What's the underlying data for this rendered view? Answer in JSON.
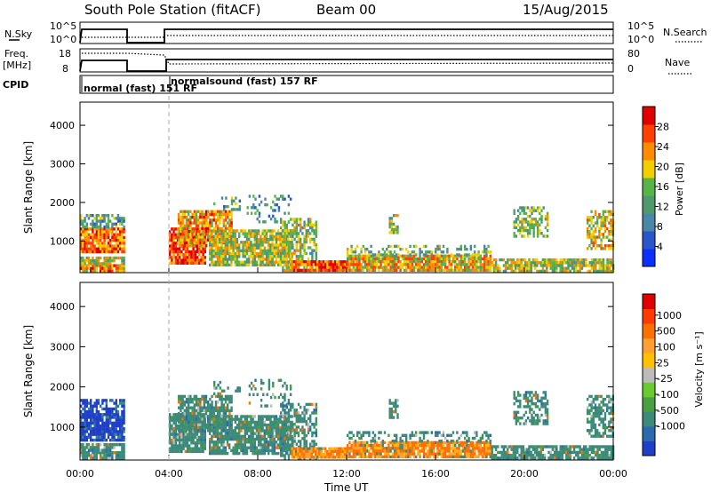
{
  "header": {
    "station": "South Pole Station (fitACF)",
    "beam": "Beam 00",
    "date": "15/Aug/2015"
  },
  "status_panels": {
    "nsky_label": "N.Sky",
    "nsky_ticks": [
      "10^5",
      "10^0"
    ],
    "nsearch_label": "N.Search",
    "nsearch_ticks": [
      "10^5",
      "10^0"
    ],
    "freq_label": "Freq.",
    "freq_unit": "[MHz]",
    "freq_ticks": [
      "18",
      "8"
    ],
    "nave_label": "Nave",
    "nave_ticks": [
      "80",
      "0"
    ],
    "cpid_label": "CPID",
    "cpid_modes": [
      {
        "label": "normal (fast) 151 RF",
        "start_h": 0,
        "end_h": 4
      },
      {
        "label": "normalsound (fast) 157 RF",
        "start_h": 4,
        "end_h": 24
      }
    ]
  },
  "chart_data": [
    {
      "type": "heatmap",
      "name": "power",
      "ylabel": "Slant Range [km]",
      "ylim": [
        180,
        4600
      ],
      "yticks": [
        1000,
        2000,
        3000,
        4000
      ],
      "colorbar": {
        "label": "Power [dB]",
        "range": [
          0,
          32
        ],
        "ticks": [
          "4",
          "8",
          "12",
          "16",
          "20",
          "24",
          "28"
        ],
        "colors": [
          "#0a2fff",
          "#2858c8",
          "#4a86a8",
          "#4e9a6c",
          "#58b448",
          "#f2d000",
          "#ff8c00",
          "#ff4000",
          "#e00000"
        ]
      }
    },
    {
      "type": "heatmap",
      "name": "velocity",
      "ylabel": "Slant Range [km]",
      "ylim": [
        180,
        4600
      ],
      "yticks": [
        1000,
        2000,
        3000,
        4000
      ],
      "xlabel": "Time UT",
      "xticks": [
        "00:00",
        "04:00",
        "08:00",
        "12:00",
        "16:00",
        "20:00",
        "00:00"
      ],
      "xlim_hours": [
        0,
        24
      ],
      "colorbar": {
        "label": "Velocity [m s⁻¹]",
        "ticks": [
          "1000",
          "500",
          "100",
          "25",
          "-25",
          "-100",
          "-500",
          "-1000"
        ],
        "colors": [
          "#1f3fc8",
          "#2c6ab0",
          "#3c8a78",
          "#4aa040",
          "#68cc30",
          "#bcbcbc",
          "#ffc000",
          "#ffa030",
          "#ff7000",
          "#ff3a00",
          "#e00000"
        ]
      }
    }
  ]
}
